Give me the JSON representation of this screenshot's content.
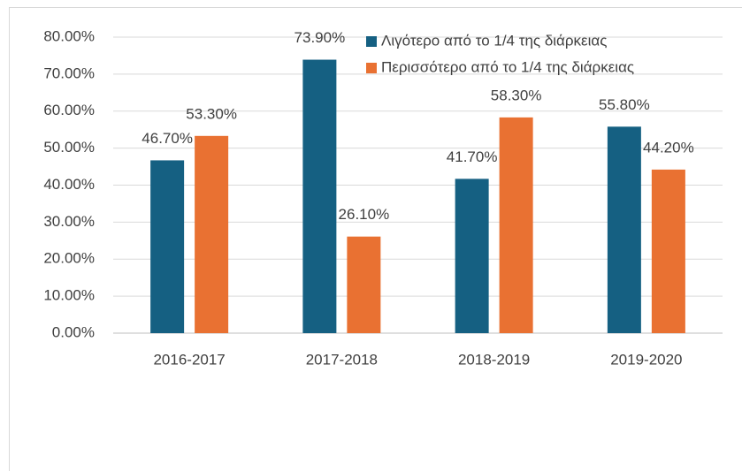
{
  "chart_data": {
    "type": "bar",
    "categories": [
      "2016-2017",
      "2017-2018",
      "2018-2019",
      "2019-2020"
    ],
    "series": [
      {
        "name": "Λιγότερο από το 1/4 της διάρκειας",
        "color": "#156082",
        "values": [
          46.7,
          73.9,
          41.7,
          55.8
        ],
        "value_labels": [
          "46.70%",
          "73.90%",
          "41.70%",
          "55.80%"
        ]
      },
      {
        "name": "Περισσότερο από το 1/4 της διάρκειας",
        "color": "#e97132",
        "values": [
          53.3,
          26.1,
          58.3,
          44.2
        ],
        "value_labels": [
          "53.30%",
          "26.10%",
          "58.30%",
          "44.20%"
        ]
      }
    ],
    "ylim": [
      0,
      80
    ],
    "yticks": [
      {
        "value": 0,
        "label": "0.00%"
      },
      {
        "value": 10,
        "label": "10.00%"
      },
      {
        "value": 20,
        "label": "20.00%"
      },
      {
        "value": 30,
        "label": "30.00%"
      },
      {
        "value": 40,
        "label": "40.00%"
      },
      {
        "value": 50,
        "label": "50.00%"
      },
      {
        "value": 60,
        "label": "60.00%"
      },
      {
        "value": 70,
        "label": "70.00%"
      },
      {
        "value": 80,
        "label": "80.00%"
      }
    ],
    "grid": true,
    "legend": "top-right"
  }
}
